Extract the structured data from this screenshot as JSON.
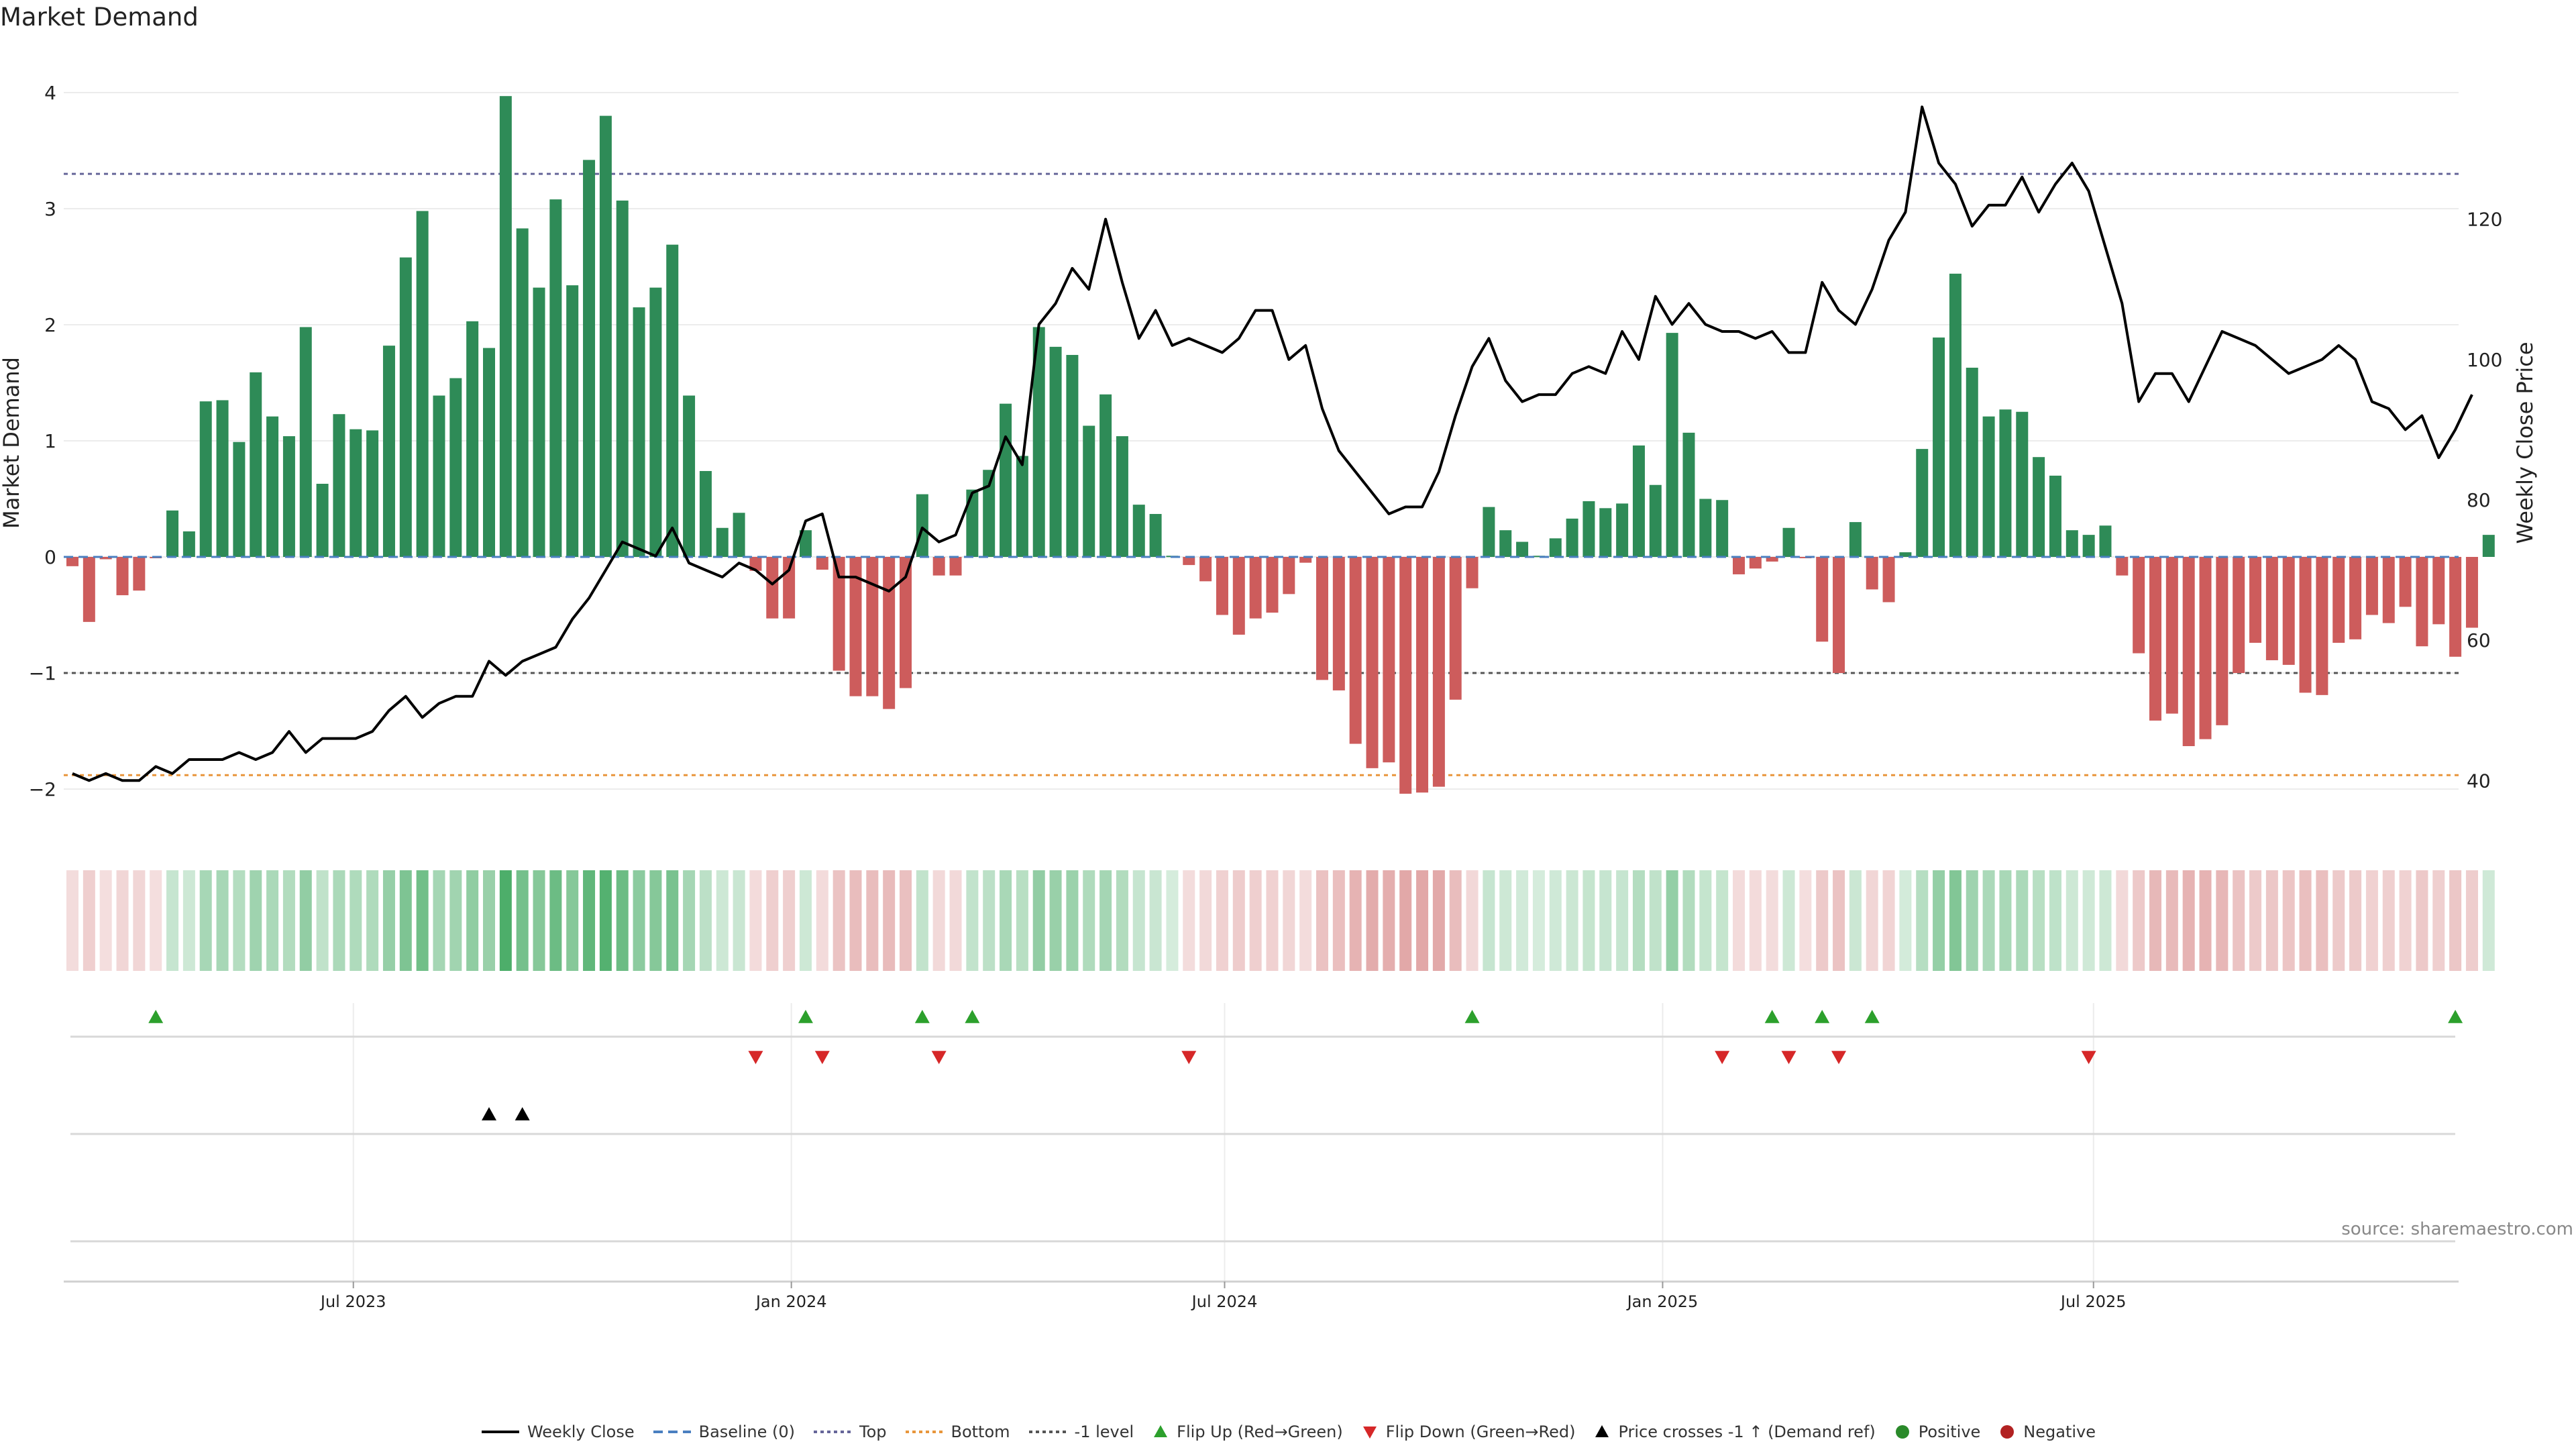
{
  "chart_data": {
    "type": "bar",
    "title": "Market Demand",
    "ylabel": "Market Demand",
    "y2label": "Weekly Close Price",
    "ylim": [
      -2.35,
      4.3
    ],
    "y2lim": [
      33,
      143
    ],
    "yticks": [
      -2,
      -1,
      0,
      1,
      2,
      3,
      4
    ],
    "yticks_labels": [
      "−2",
      "−1",
      "0",
      "1",
      "2",
      "3",
      "4"
    ],
    "y2ticks": [
      40,
      60,
      80,
      100,
      120
    ],
    "start_date": "2023-03-05",
    "x_tick_labels": [
      "Jul 2023",
      "Jan 2024",
      "Jul 2024",
      "Jan 2025",
      "Jul 2025"
    ],
    "reference_lines": {
      "top": 3.3,
      "bottom": -1.88,
      "minus_one": -1.0,
      "baseline": 0
    },
    "colors": {
      "positive": "#2e8b57",
      "negative": "#cd5c5c",
      "price": "#000000",
      "flip_up": "#2ca02c",
      "flip_down": "#d62728",
      "top": "#666699",
      "bottom": "#e8963c",
      "baseline": "#4a7fc0",
      "minus_one": "#555555"
    },
    "series": [
      {
        "name": "Market Demand",
        "values": [
          -0.08,
          -0.56,
          -0.02,
          -0.33,
          -0.29,
          -0.01,
          0.4,
          0.22,
          1.34,
          1.35,
          0.99,
          1.59,
          1.21,
          1.04,
          1.98,
          0.63,
          1.23,
          1.1,
          1.09,
          1.82,
          2.58,
          2.98,
          1.39,
          1.54,
          2.03,
          1.8,
          3.97,
          2.83,
          2.32,
          3.08,
          2.34,
          3.42,
          3.8,
          3.07,
          2.15,
          2.32,
          2.69,
          1.39,
          0.74,
          0.25,
          0.38,
          -0.12,
          -0.53,
          -0.53,
          0.23,
          -0.11,
          -0.98,
          -1.2,
          -1.2,
          -1.31,
          -1.13,
          0.54,
          -0.16,
          -0.16,
          0.58,
          0.75,
          1.32,
          0.87,
          1.98,
          1.81,
          1.74,
          1.13,
          1.4,
          1.04,
          0.45,
          0.37,
          0.01,
          -0.07,
          -0.21,
          -0.5,
          -0.67,
          -0.53,
          -0.48,
          -0.32,
          -0.05,
          -1.06,
          -1.15,
          -1.61,
          -1.82,
          -1.77,
          -2.04,
          -2.03,
          -1.98,
          -1.23,
          -0.27,
          0.43,
          0.23,
          0.13,
          0.01,
          0.16,
          0.33,
          0.48,
          0.42,
          0.46,
          0.96,
          0.62,
          1.93,
          1.07,
          0.5,
          0.49,
          -0.15,
          -0.1,
          -0.04,
          0.25,
          -0.01,
          -0.73,
          -1.0,
          0.3,
          -0.28,
          -0.39,
          0.04,
          0.93,
          1.89,
          2.44,
          1.63,
          1.21,
          1.27,
          1.25,
          0.86,
          0.7,
          0.23,
          0.19,
          0.27,
          -0.16,
          -0.83,
          -1.41,
          -1.35,
          -1.63,
          -1.57,
          -1.45,
          -1.0,
          -0.74,
          -0.89,
          -0.93,
          -1.17,
          -1.19,
          -0.74,
          -0.71,
          -0.5,
          -0.57,
          -0.43,
          -0.77,
          -0.58,
          -0.86,
          -0.61,
          0.19
        ]
      },
      {
        "name": "Weekly Close",
        "values": [
          41,
          40,
          41,
          40,
          40,
          42,
          41,
          43,
          43,
          43,
          44,
          43,
          44,
          47,
          44,
          46,
          46,
          46,
          47,
          50,
          52,
          49,
          51,
          52,
          52,
          57,
          55,
          57,
          58,
          59,
          63,
          66,
          70,
          74,
          73,
          72,
          76,
          71,
          70,
          69,
          71,
          70,
          68,
          70,
          77,
          78,
          69,
          69,
          68,
          67,
          69,
          76,
          74,
          75,
          81,
          82,
          89,
          85,
          105,
          108,
          113,
          110,
          120,
          111,
          103,
          107,
          102,
          103,
          102,
          101,
          103,
          107,
          107,
          100,
          102,
          93,
          87,
          84,
          81,
          78,
          79,
          79,
          84,
          92,
          99,
          103,
          97,
          94,
          95,
          95,
          98,
          99,
          98,
          104,
          100,
          109,
          105,
          108,
          105,
          104,
          104,
          103,
          104,
          101,
          101,
          111,
          107,
          105,
          110,
          117,
          121,
          136,
          128,
          125,
          119,
          122,
          122,
          126,
          121,
          125,
          128,
          124,
          116,
          108,
          94,
          98,
          98,
          94,
          99,
          104,
          103,
          102,
          100,
          98,
          99,
          100,
          102,
          100,
          94,
          93,
          90,
          92,
          86,
          90,
          95
        ]
      }
    ],
    "flip_up_indices": [
      5,
      44,
      51,
      54,
      84,
      102,
      105,
      108,
      143
    ],
    "flip_down_indices": [
      41,
      45,
      52,
      67,
      99,
      103,
      106,
      121
    ],
    "price_cross_indices": [
      25,
      27
    ],
    "legend": [
      "Weekly Close",
      "Baseline (0)",
      "Top",
      "Bottom",
      "-1 level",
      "Flip Up (Red→Green)",
      "Flip Down (Green→Red)",
      "Price crosses -1 ↑ (Demand ref)",
      "Positive",
      "Negative"
    ]
  },
  "source": "source: sharemaestro.com"
}
